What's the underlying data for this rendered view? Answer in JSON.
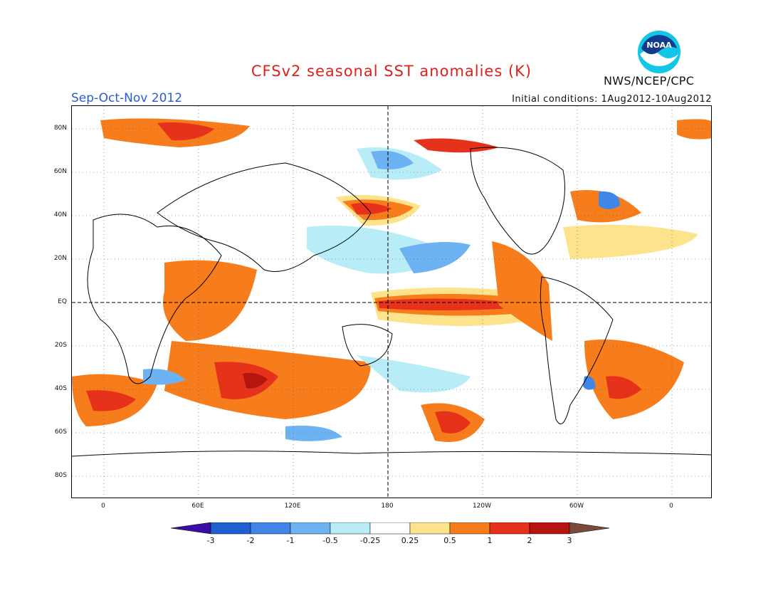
{
  "title": "CFSv2 seasonal SST anomalies (K)",
  "season": "Sep-Oct-Nov 2012",
  "initial_conditions": "Initial conditions: 1Aug2012-10Aug2012",
  "agency": "NWS/NCEP/CPC",
  "logo_text": "NOAA",
  "lat_labels": [
    "80N",
    "60N",
    "40N",
    "20N",
    "EQ",
    "20S",
    "40S",
    "60S",
    "80S"
  ],
  "lon_labels": [
    "0",
    "60E",
    "120E",
    "180",
    "120W",
    "60W",
    "0"
  ],
  "colorbar": {
    "labels": [
      "-3",
      "-2",
      "-1",
      "-0.5",
      "-0.25",
      "0.25",
      "0.5",
      "1",
      "2",
      "3"
    ],
    "colors": [
      "#3a0ea6",
      "#1f5fd0",
      "#3f86e6",
      "#6db2f2",
      "#b8ecf7",
      "#ffffff",
      "#fde48c",
      "#f77d1c",
      "#e6311b",
      "#b5140f",
      "#7a4a3c"
    ]
  }
}
